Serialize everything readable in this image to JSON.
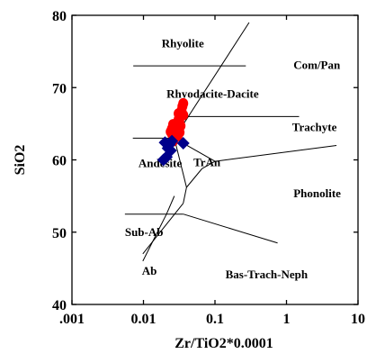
{
  "chart_data": {
    "type": "scatter",
    "title": "",
    "xlabel": "Zr/TiO2*0.0001",
    "ylabel": "SiO2",
    "x_scale": "log",
    "xlim": [
      0.001,
      10
    ],
    "ylim": [
      40,
      80
    ],
    "x_ticks": [
      0.001,
      0.01,
      0.1,
      1,
      10
    ],
    "x_tick_labels": [
      ".001",
      "0.01",
      "0.1",
      "1",
      "10"
    ],
    "y_ticks": [
      40,
      50,
      60,
      70,
      80
    ],
    "y_tick_labels": [
      "40",
      "50",
      "60",
      "70",
      "80"
    ],
    "grid": false,
    "field_labels": [
      {
        "text": "Rhyolite",
        "x": 0.018,
        "y": 75.6
      },
      {
        "text": "Com/Pan",
        "x": 1.25,
        "y": 72.6
      },
      {
        "text": "Rhyodacite-Dacite",
        "x": 0.021,
        "y": 68.6
      },
      {
        "text": "Trachyte",
        "x": 1.2,
        "y": 64.0
      },
      {
        "text": "Andesite",
        "x": 0.0085,
        "y": 59.0
      },
      {
        "text": "TrAn",
        "x": 0.05,
        "y": 59.1
      },
      {
        "text": "Phonolite",
        "x": 1.25,
        "y": 54.8
      },
      {
        "text": "Sub-Ab",
        "x": 0.0055,
        "y": 49.5
      },
      {
        "text": "Ab",
        "x": 0.0095,
        "y": 44.1
      },
      {
        "text": "Bas-Trach-Neph",
        "x": 0.14,
        "y": 43.6
      }
    ],
    "boundaries": [
      [
        [
          0.0072,
          73.0
        ],
        [
          0.27,
          73.0
        ]
      ],
      [
        [
          0.027,
          63.0
        ],
        [
          0.3,
          79.0
        ]
      ],
      [
        [
          0.0071,
          63.0
        ],
        [
          0.027,
          63.0
        ]
      ],
      [
        [
          0.036,
          66.0
        ],
        [
          1.5,
          66.0
        ]
      ],
      [
        [
          0.027,
          63.0
        ],
        [
          0.1,
          59.8
        ]
      ],
      [
        [
          0.1,
          59.8
        ],
        [
          5.0,
          62.0
        ]
      ],
      [
        [
          0.027,
          63.0
        ],
        [
          0.04,
          56.2
        ]
      ],
      [
        [
          0.04,
          56.2
        ],
        [
          0.066,
          58.8
        ]
      ],
      [
        [
          0.066,
          58.8
        ],
        [
          0.1,
          59.8
        ]
      ],
      [
        [
          0.04,
          56.2
        ],
        [
          0.036,
          54.0
        ]
      ],
      [
        [
          0.036,
          54.0
        ],
        [
          0.0098,
          47.0
        ]
      ],
      [
        [
          0.0055,
          52.5
        ],
        [
          0.036,
          52.5
        ]
      ],
      [
        [
          0.036,
          52.5
        ],
        [
          0.75,
          48.5
        ]
      ],
      [
        [
          0.0098,
          46.0
        ],
        [
          0.021,
          52.5
        ]
      ],
      [
        [
          0.021,
          52.5
        ],
        [
          0.027,
          55.0
        ]
      ]
    ],
    "series": [
      {
        "marker": "circle",
        "color": "#ff0000",
        "points": [
          {
            "x": 0.025,
            "y": 63.6
          },
          {
            "x": 0.025,
            "y": 64.3
          },
          {
            "x": 0.026,
            "y": 64.9
          },
          {
            "x": 0.027,
            "y": 64.1
          },
          {
            "x": 0.028,
            "y": 63.4
          },
          {
            "x": 0.029,
            "y": 65.0
          },
          {
            "x": 0.03,
            "y": 64.5
          },
          {
            "x": 0.031,
            "y": 65.6
          },
          {
            "x": 0.031,
            "y": 66.4
          },
          {
            "x": 0.032,
            "y": 65.1
          },
          {
            "x": 0.033,
            "y": 66.0
          },
          {
            "x": 0.034,
            "y": 66.8
          },
          {
            "x": 0.035,
            "y": 67.4
          },
          {
            "x": 0.036,
            "y": 66.2
          },
          {
            "x": 0.036,
            "y": 67.8
          },
          {
            "x": 0.033,
            "y": 64.7
          },
          {
            "x": 0.028,
            "y": 64.6
          },
          {
            "x": 0.024,
            "y": 63.9
          },
          {
            "x": 0.026,
            "y": 62.6
          },
          {
            "x": 0.03,
            "y": 63.3
          },
          {
            "x": 0.032,
            "y": 63.8
          }
        ]
      },
      {
        "marker": "diamond",
        "color": "#00008b",
        "points": [
          {
            "x": 0.02,
            "y": 62.4
          },
          {
            "x": 0.022,
            "y": 61.6
          },
          {
            "x": 0.023,
            "y": 62.1
          },
          {
            "x": 0.025,
            "y": 62.6
          },
          {
            "x": 0.019,
            "y": 60.0
          },
          {
            "x": 0.021,
            "y": 60.4
          },
          {
            "x": 0.036,
            "y": 62.3
          },
          {
            "x": 0.024,
            "y": 61.3
          }
        ]
      }
    ]
  }
}
